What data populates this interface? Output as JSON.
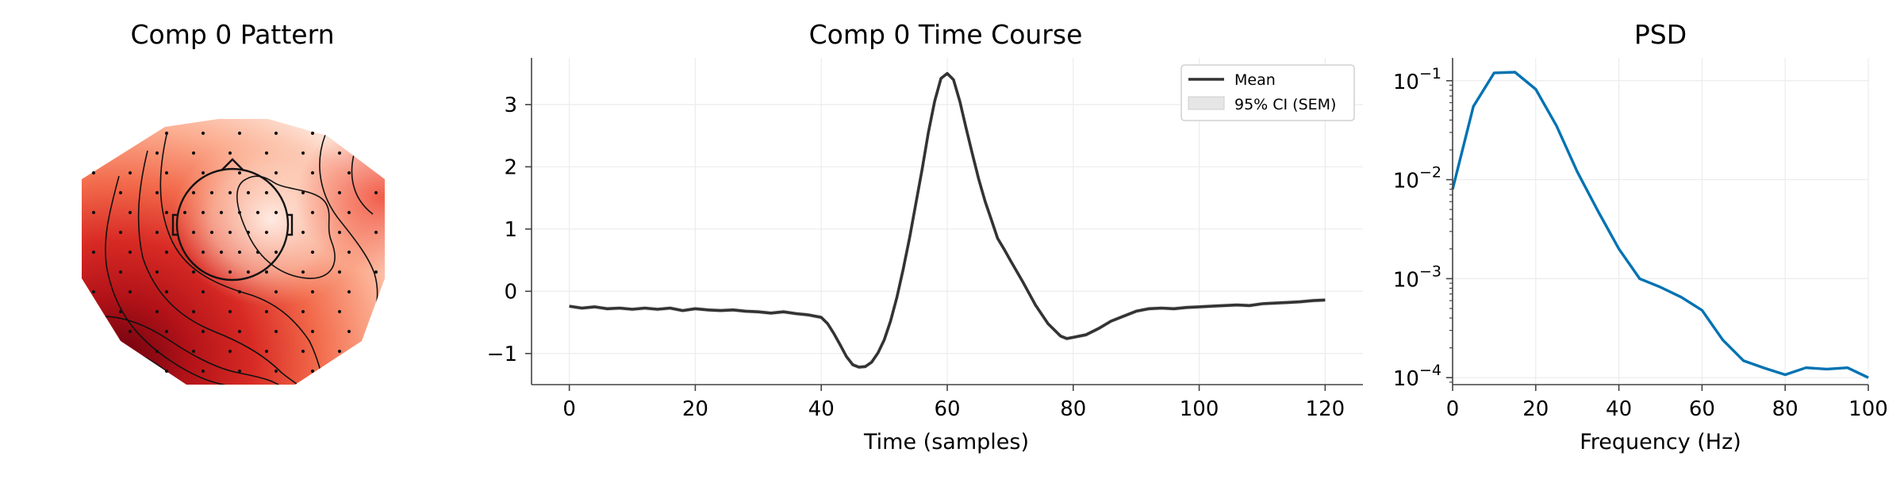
{
  "chart_data": [
    {
      "type": "heatmap",
      "title": "Comp 0 Pattern",
      "colormap": "Reds",
      "sensor_grid": true,
      "contours": true
    },
    {
      "type": "line",
      "title": "Comp 0 Time Course",
      "xlabel": "Time (samples)",
      "ylabel": "",
      "xlim": [
        -6,
        126
      ],
      "ylim": [
        -1.5,
        3.75
      ],
      "xticks": [
        "0",
        "20",
        "40",
        "60",
        "80",
        "100",
        "120"
      ],
      "yticks": [
        "−1",
        "0",
        "1",
        "2",
        "3"
      ],
      "grid": true,
      "legend_position": "top-right",
      "legend": [
        "Mean",
        "95% CI (SEM)"
      ],
      "line_color": "#333333",
      "band_color": "#e6e6e6",
      "series": [
        {
          "name": "Mean",
          "x": [
            0,
            2,
            4,
            6,
            8,
            10,
            12,
            14,
            16,
            18,
            20,
            22,
            24,
            26,
            28,
            30,
            32,
            34,
            36,
            38,
            40,
            41,
            42,
            43,
            44,
            45,
            46,
            47,
            48,
            49,
            50,
            51,
            52,
            53,
            54,
            55,
            56,
            57,
            58,
            59,
            60,
            61,
            62,
            63,
            64,
            65,
            66,
            67,
            68,
            69,
            70,
            72,
            74,
            76,
            78,
            79,
            80,
            82,
            84,
            86,
            88,
            90,
            92,
            94,
            96,
            98,
            100,
            102,
            104,
            106,
            108,
            110,
            112,
            114,
            116,
            118,
            120
          ],
          "values": [
            -0.24,
            -0.27,
            -0.25,
            -0.28,
            -0.27,
            -0.29,
            -0.27,
            -0.29,
            -0.27,
            -0.31,
            -0.28,
            -0.3,
            -0.31,
            -0.3,
            -0.32,
            -0.33,
            -0.35,
            -0.33,
            -0.36,
            -0.38,
            -0.42,
            -0.52,
            -0.68,
            -0.86,
            -1.05,
            -1.18,
            -1.22,
            -1.21,
            -1.14,
            -0.99,
            -0.78,
            -0.48,
            -0.1,
            0.35,
            0.85,
            1.4,
            1.95,
            2.55,
            3.05,
            3.42,
            3.5,
            3.4,
            3.05,
            2.62,
            2.2,
            1.8,
            1.45,
            1.15,
            0.85,
            0.68,
            0.5,
            0.15,
            -0.22,
            -0.52,
            -0.72,
            -0.76,
            -0.74,
            -0.7,
            -0.6,
            -0.48,
            -0.4,
            -0.32,
            -0.28,
            -0.27,
            -0.28,
            -0.26,
            -0.25,
            -0.24,
            -0.23,
            -0.22,
            -0.23,
            -0.2,
            -0.19,
            -0.18,
            -0.17,
            -0.15,
            -0.14
          ]
        }
      ]
    },
    {
      "type": "line",
      "title": "PSD",
      "xlabel": "Frequency (Hz)",
      "ylabel": "",
      "xlim": [
        0,
        100
      ],
      "ylim": [
        8.5e-05,
        0.17
      ],
      "yscale": "log",
      "xticks": [
        "0",
        "20",
        "40",
        "60",
        "80",
        "100"
      ],
      "yticks": [
        {
          "base": "10",
          "exp": "−4",
          "value": 0.0001
        },
        {
          "base": "10",
          "exp": "−3",
          "value": 0.001
        },
        {
          "base": "10",
          "exp": "−2",
          "value": 0.01
        },
        {
          "base": "10",
          "exp": "−1",
          "value": 0.1
        }
      ],
      "grid": true,
      "line_color": "#0072b2",
      "series": [
        {
          "x": [
            0,
            5,
            10,
            15,
            20,
            25,
            30,
            35,
            40,
            45,
            50,
            55,
            60,
            65,
            70,
            75,
            80,
            85,
            90,
            95,
            100
          ],
          "values": [
            0.008,
            0.055,
            0.12,
            0.122,
            0.082,
            0.035,
            0.012,
            0.0048,
            0.002,
            0.001,
            0.00082,
            0.00065,
            0.00048,
            0.00024,
            0.000148,
            0.000125,
            0.000107,
            0.000126,
            0.000122,
            0.000126,
            0.0001
          ]
        }
      ]
    }
  ]
}
